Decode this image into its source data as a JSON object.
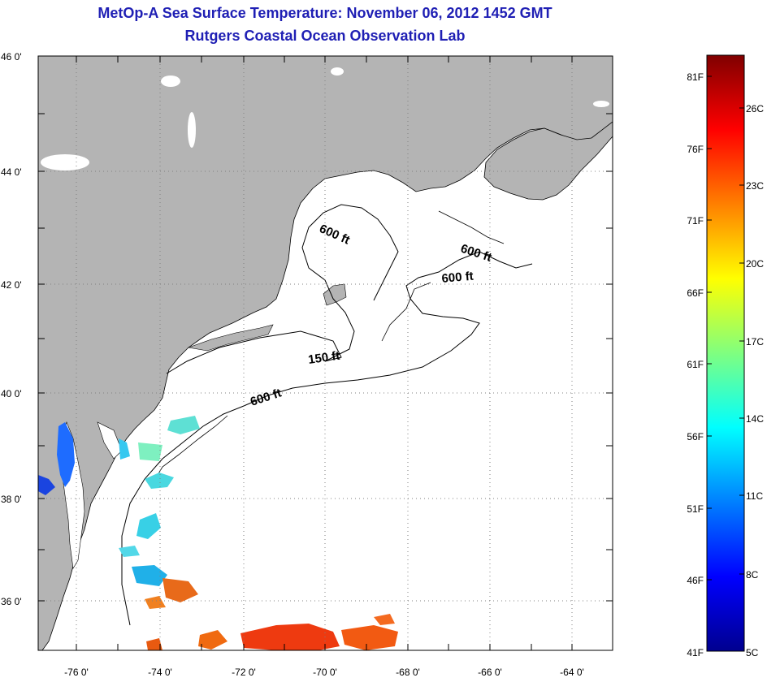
{
  "title": {
    "line1": "MetOp-A Sea Surface Temperature:  November 06, 2012 1452 GMT",
    "line2": "Rutgers Coastal Ocean Observation Lab"
  },
  "map": {
    "lat_labels": [
      "46 0'",
      "44 0'",
      "42 0'",
      "40 0'",
      "38 0'",
      "36 0'"
    ],
    "lon_labels": [
      "-76 0'",
      "-74 0'",
      "-72 0'",
      "-70 0'",
      "-68 0'",
      "-66 0'",
      "-64 0'"
    ],
    "lat_range": [
      35,
      46
    ],
    "lon_range": [
      -77,
      -63
    ],
    "contour_labels": [
      {
        "text": "600 ft"
      },
      {
        "text": "600 ft"
      },
      {
        "text": "600 ft"
      },
      {
        "text": "150 ft"
      },
      {
        "text": "600 ft"
      }
    ],
    "colors": {
      "land": "#b4b4b4",
      "water": "#ffffff",
      "title": "#1f1fb4"
    }
  },
  "colorbar": {
    "f_labels": [
      "81F",
      "76F",
      "71F",
      "66F",
      "61F",
      "56F",
      "51F",
      "46F",
      "41F"
    ],
    "c_labels": [
      "26C",
      "23C",
      "20C",
      "17C",
      "14C",
      "11C",
      "8C",
      "5C"
    ],
    "range_c": [
      5,
      27.2
    ]
  }
}
